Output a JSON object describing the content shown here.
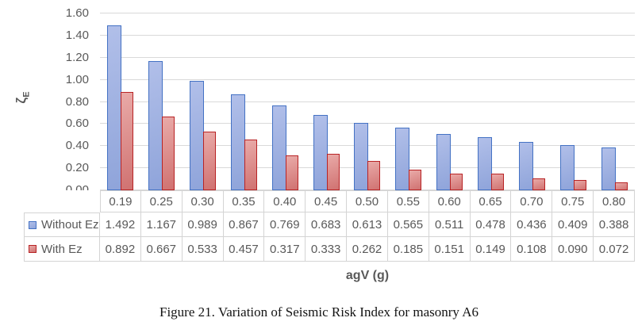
{
  "chart_data": {
    "type": "bar",
    "title": "",
    "categories": [
      "0.19",
      "0.25",
      "0.30",
      "0.35",
      "0.40",
      "0.45",
      "0.50",
      "0.55",
      "0.60",
      "0.65",
      "0.70",
      "0.75",
      "0.80"
    ],
    "series": [
      {
        "name": "Without Ez",
        "values": [
          1.492,
          1.167,
          0.989,
          0.867,
          0.769,
          0.683,
          0.613,
          0.565,
          0.511,
          0.478,
          0.436,
          0.409,
          0.388
        ],
        "display_values": [
          "1.492",
          "1.167",
          "0.989",
          "0.867",
          "0.769",
          "0.683",
          "0.613",
          "0.565",
          "0.511",
          "0.478",
          "0.436",
          "0.409",
          "0.388"
        ],
        "fill_light": "#b1bfe9",
        "fill_dark": "#8fa4da",
        "border": "#4472c4"
      },
      {
        "name": "With Ez",
        "values": [
          0.892,
          0.667,
          0.533,
          0.457,
          0.317,
          0.333,
          0.262,
          0.185,
          0.151,
          0.149,
          0.108,
          0.09,
          0.072
        ],
        "display_values": [
          "0.892",
          "0.667",
          "0.533",
          "0.457",
          "0.317",
          "0.333",
          "0.262",
          "0.185",
          "0.151",
          "0.149",
          "0.108",
          "0.090",
          "0.072"
        ],
        "fill_light": "#e9aaa8",
        "fill_dark": "#d07271",
        "border": "#b82325"
      }
    ],
    "xlabel": "agV (g)",
    "ylabel": "ζ",
    "ylabel_sub": "E",
    "ylim": [
      0,
      1.6
    ],
    "ytick_step": 0.2,
    "yticks": [
      "0.00",
      "0.20",
      "0.40",
      "0.60",
      "0.80",
      "1.00",
      "1.20",
      "1.40",
      "1.60"
    ],
    "grid": true,
    "gridline_color": "#d9d9d9",
    "legend_position": "table-left",
    "data_table_shown": true
  },
  "caption": "Figure 21. Variation of Seismic Risk Index for masonry A6"
}
